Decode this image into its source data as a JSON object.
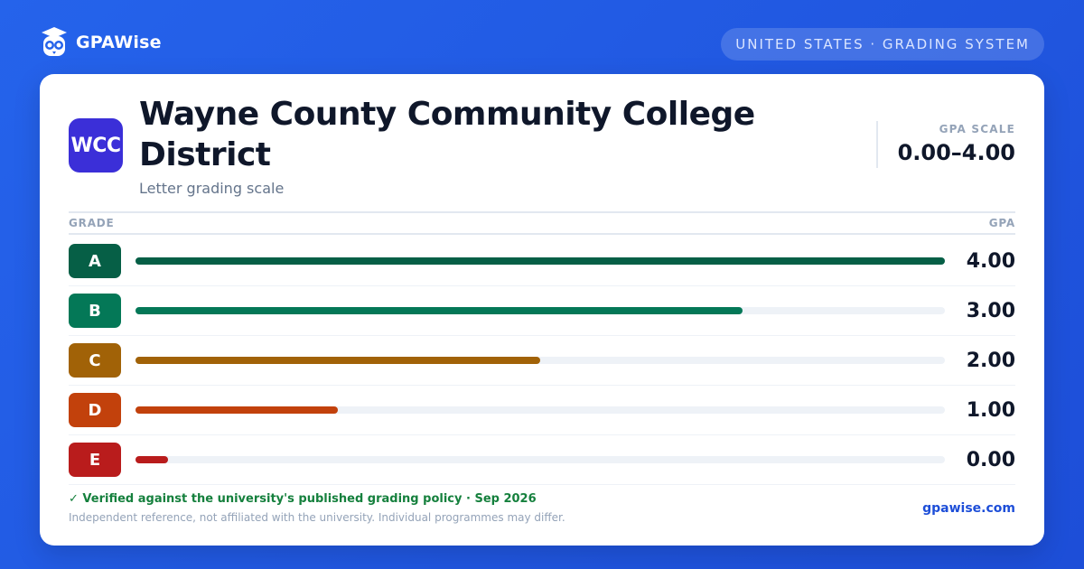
{
  "brand": {
    "name": "GPAWise"
  },
  "region_pill": "UNITED STATES · GRADING SYSTEM",
  "university": {
    "logo_text": "WCC",
    "logo_color": "#3b2fd8",
    "name": "Wayne County Community College District",
    "subtitle": "Letter grading scale"
  },
  "scale": {
    "label": "GPA SCALE",
    "value": "0.00–4.00"
  },
  "table": {
    "grade_header": "GRADE",
    "gpa_header": "GPA",
    "rows": [
      {
        "grade": "A",
        "gpa": "4.00",
        "fraction": 1.0,
        "color": "#065f46"
      },
      {
        "grade": "B",
        "gpa": "3.00",
        "fraction": 0.75,
        "color": "#047857"
      },
      {
        "grade": "C",
        "gpa": "2.00",
        "fraction": 0.5,
        "color": "#a16207"
      },
      {
        "grade": "D",
        "gpa": "1.00",
        "fraction": 0.25,
        "color": "#c2410c"
      },
      {
        "grade": "E",
        "gpa": "0.00",
        "fraction": 0.04,
        "color": "#b91c1c"
      }
    ]
  },
  "footer": {
    "verified": "✓ Verified against the university's published grading policy · Sep 2026",
    "disclaimer": "Independent reference, not affiliated with the university. Individual programmes may differ.",
    "site": "gpawise.com"
  },
  "colors": {
    "background": "#2563eb",
    "accent": "#1d4ed8",
    "verified": "#15803d"
  }
}
